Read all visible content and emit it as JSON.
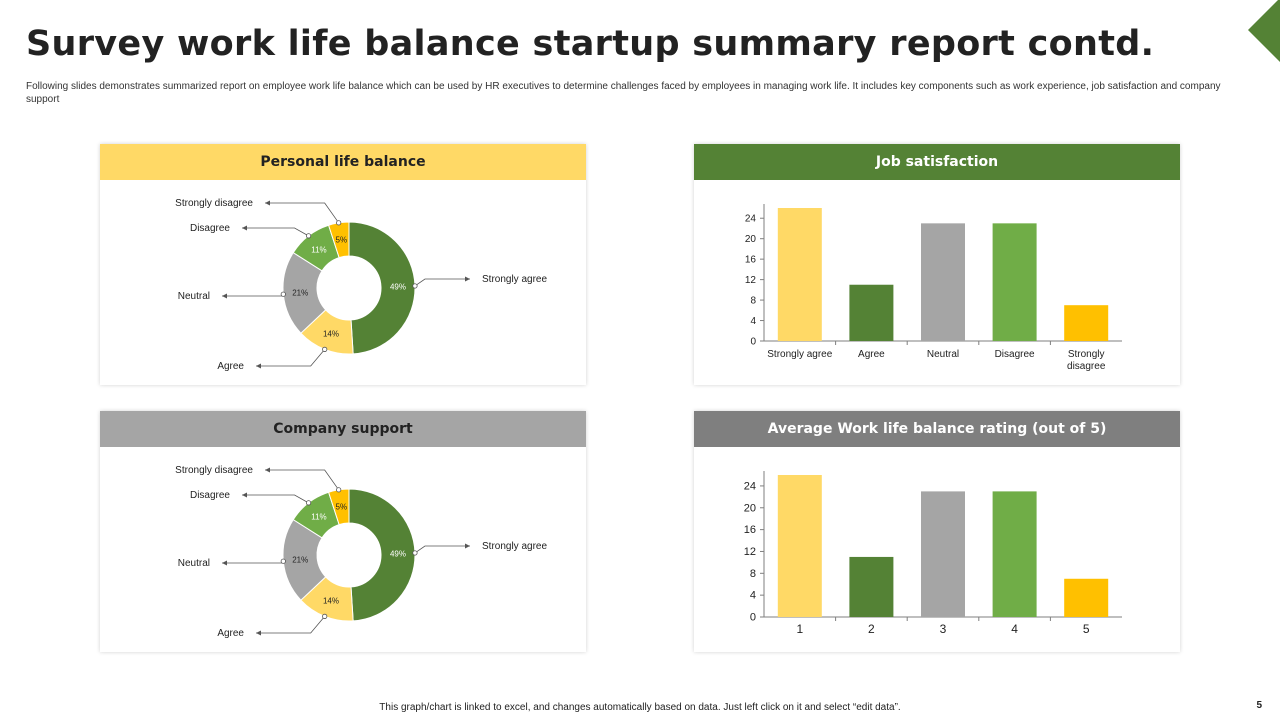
{
  "title": "Survey work life balance startup summary report contd.",
  "subtitle": "Following slides demonstrates summarized report on employee work life balance which can be used by HR executives to determine challenges faced by employees in managing work life. It includes key components such as work experience, job satisfaction and company support",
  "footer": "This graph/chart is linked to excel, and changes automatically based on data. Just left click on it and select “edit data”.",
  "page_number": "5",
  "colors": {
    "dark_green": "#548235",
    "light_green": "#70AD47",
    "gray": "#A5A5A5",
    "light_yellow": "#FFD966",
    "amber": "#FFC000",
    "header_yellow": "#FFD966",
    "header_green": "#548235",
    "header_gray": "#A5A5A5",
    "header_dark_gray": "#7F7F7F"
  },
  "panels": {
    "personal": {
      "header": "Personal life balance"
    },
    "job": {
      "header": "Job satisfaction"
    },
    "company": {
      "header": "Company support"
    },
    "average": {
      "header": "Average Work life balance rating (out of 5)"
    }
  },
  "chart_data": [
    {
      "id": "personal",
      "type": "pie",
      "title": "Personal life balance",
      "labels": [
        "Strongly agree",
        "Agree",
        "Neutral",
        "Disagree",
        "Strongly disagree"
      ],
      "values": [
        49,
        14,
        21,
        11,
        5
      ],
      "data_labels": [
        "49%",
        "14%",
        "21%",
        "11%",
        "5%"
      ],
      "colors": [
        "#548235",
        "#FFD966",
        "#A5A5A5",
        "#70AD47",
        "#FFC000"
      ]
    },
    {
      "id": "job",
      "type": "bar",
      "title": "Job satisfaction",
      "categories": [
        "Strongly agree",
        "Agree",
        "Neutral",
        "Disagree",
        "Strongly disagree"
      ],
      "values": [
        26,
        11,
        23,
        23,
        7
      ],
      "colors": [
        "#FFD966",
        "#548235",
        "#A5A5A5",
        "#70AD47",
        "#FFC000"
      ],
      "yticks": [
        "0",
        "4",
        "8",
        "12",
        "16",
        "20",
        "24"
      ],
      "ylim": [
        0,
        26
      ]
    },
    {
      "id": "company",
      "type": "pie",
      "title": "Company support",
      "labels": [
        "Strongly agree",
        "Agree",
        "Neutral",
        "Disagree",
        "Strongly disagree"
      ],
      "values": [
        49,
        14,
        21,
        11,
        5
      ],
      "data_labels": [
        "49%",
        "14%",
        "21%",
        "11%",
        "5%"
      ],
      "colors": [
        "#548235",
        "#FFD966",
        "#A5A5A5",
        "#70AD47",
        "#FFC000"
      ]
    },
    {
      "id": "average",
      "type": "bar",
      "title": "Average Work life balance rating (out of 5)",
      "categories": [
        "1",
        "2",
        "3",
        "4",
        "5"
      ],
      "values": [
        26,
        11,
        23,
        23,
        7
      ],
      "colors": [
        "#FFD966",
        "#548235",
        "#A5A5A5",
        "#70AD47",
        "#FFC000"
      ],
      "yticks": [
        "0",
        "4",
        "8",
        "12",
        "16",
        "20",
        "24"
      ],
      "ylim": [
        0,
        26
      ]
    }
  ]
}
